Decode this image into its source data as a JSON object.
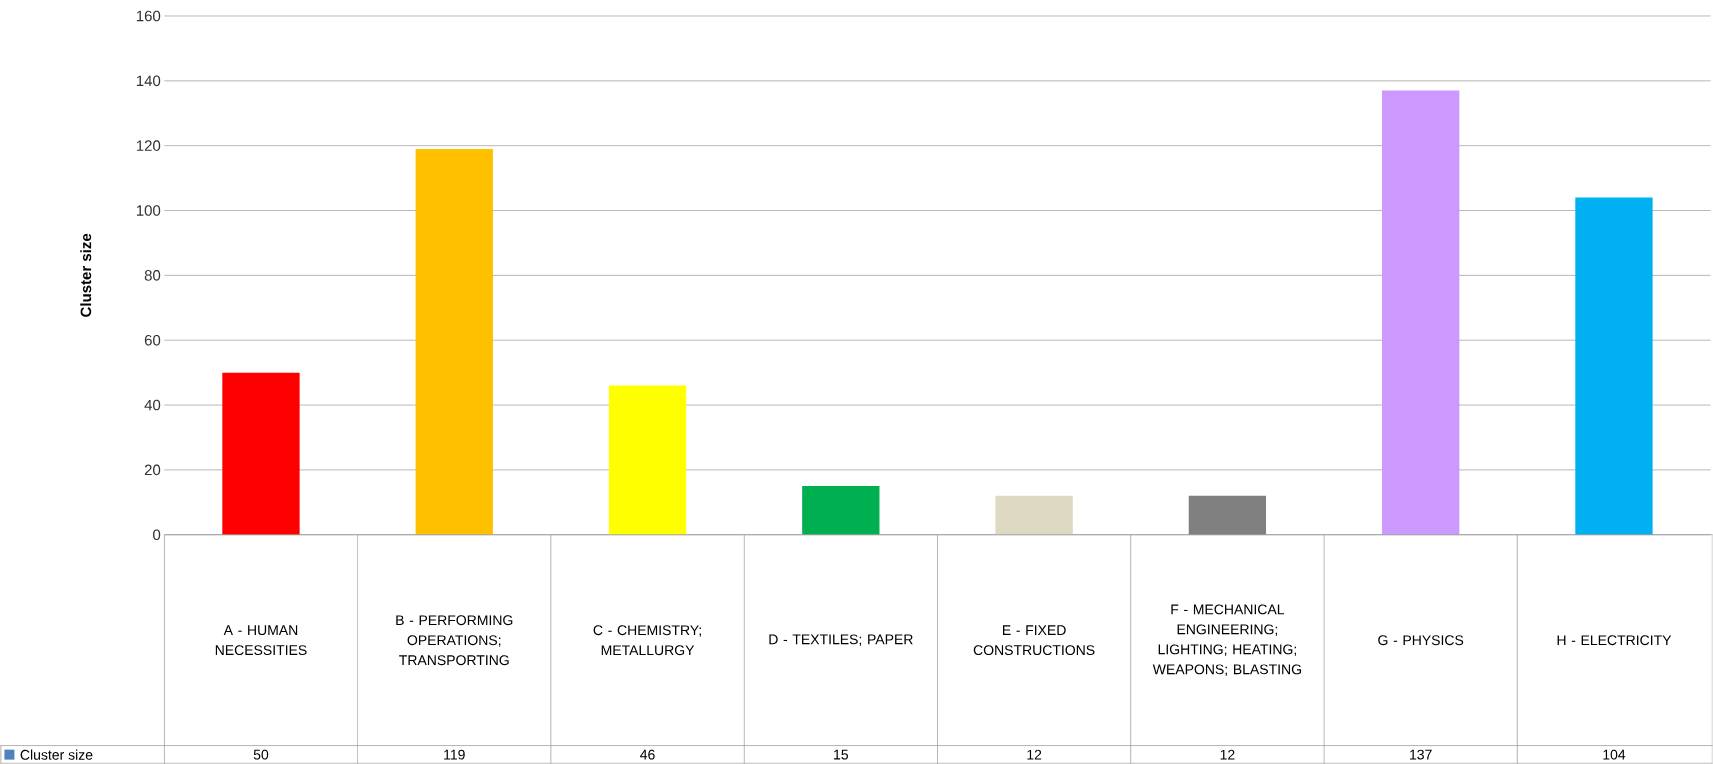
{
  "chart_data": {
    "type": "bar",
    "ylabel": "Cluster size",
    "categories": [
      "A - HUMAN NECESSITIES",
      "B - PERFORMING OPERATIONS; TRANSPORTING",
      "C - CHEMISTRY; METALLURGY",
      "D - TEXTILES; PAPER",
      "E - FIXED CONSTRUCTIONS",
      "F - MECHANICAL ENGINEERING; LIGHTING; HEATING; WEAPONS; BLASTING",
      "G - PHYSICS",
      "H - ELECTRICITY"
    ],
    "series": [
      {
        "name": "Cluster size",
        "color": "#4f81bd",
        "colors": [
          "#ff0000",
          "#ffc000",
          "#ffff00",
          "#00b050",
          "#ddd9c3",
          "#808080",
          "#cc99ff",
          "#00b0f0"
        ],
        "values": [
          50,
          119,
          46,
          15,
          12,
          12,
          137,
          104
        ]
      }
    ],
    "ylim": [
      0,
      160
    ],
    "yticks": [
      0,
      20,
      40,
      60,
      80,
      100,
      120,
      140,
      160
    ],
    "grid": "y",
    "legend": "bottom",
    "data_labels": true
  }
}
